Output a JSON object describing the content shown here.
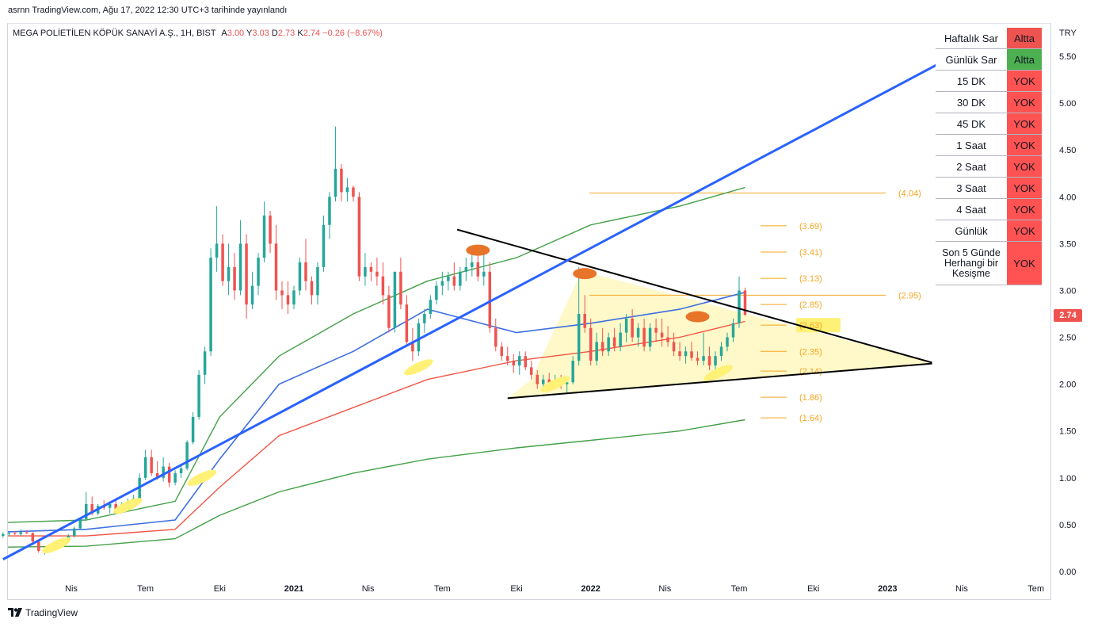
{
  "publisher_line": "asrnn TradingView.com, Ağu 17, 2022 12:30 UTC+3 tarihinde yayınlandı",
  "legend": {
    "symbol": "MEGA POLİETİLEN KÖPÜK SANAYİ A.Ş., 1H, BIST",
    "open_label": "A",
    "open": "3.00",
    "high_label": "Y",
    "high": "3.03",
    "low_label": "D",
    "low": "2.73",
    "close_label": "K",
    "close": "2.74",
    "change": "−0.26 (−8.67%)"
  },
  "currency": "TRY",
  "last_price": "2.74",
  "footer": {
    "brand": "TradingView",
    "icon": "tradingview-logo-icon"
  },
  "colors": {
    "up": "#26a69a",
    "down": "#ef5350",
    "trend_line": "#2962ff",
    "blue_ma": "#3d6fe0",
    "red_ma": "#f05545",
    "green_ma": "#43a047",
    "fib": "#f5a623",
    "altta": "#ef5350",
    "altta_green": "#4caf50",
    "yok": "#ff5252",
    "triangle_fill": "#fff7c2",
    "highlight": "#fff176",
    "marker_orange": "#e8742a"
  },
  "status_table": [
    {
      "name": "Haftalık Sar",
      "status": "Altta",
      "color": "#ef5350"
    },
    {
      "name": "Günlük Sar",
      "status": "Altta",
      "color": "#4caf50"
    },
    {
      "name": "15 DK",
      "status": "YOK",
      "color": "#ff5252"
    },
    {
      "name": "30 DK",
      "status": "YOK",
      "color": "#ff5252"
    },
    {
      "name": "45 DK",
      "status": "YOK",
      "color": "#ff5252"
    },
    {
      "name": "1 Saat",
      "status": "YOK",
      "color": "#ff5252"
    },
    {
      "name": "2 Saat",
      "status": "YOK",
      "color": "#ff5252"
    },
    {
      "name": "3 Saat",
      "status": "YOK",
      "color": "#ff5252"
    },
    {
      "name": "4 Saat",
      "status": "YOK",
      "color": "#ff5252"
    },
    {
      "name": "Günlük",
      "status": "YOK",
      "color": "#ff5252"
    },
    {
      "name": "Son 5 Günde Herhangi bir Kesişme",
      "status": "YOK",
      "color": "#ff5252"
    }
  ],
  "chart_data": {
    "type": "candlestick",
    "title": "MEGA POLİETİLEN KÖPÜK SANAYİ A.Ş., 1H, BIST",
    "ylim": [
      0,
      5.75
    ],
    "y_ticks": [
      "0.00",
      "0.50",
      "1.00",
      "1.50",
      "2.00",
      "2.50",
      "3.00",
      "3.50",
      "4.00",
      "4.50",
      "5.00",
      "5.50"
    ],
    "x_ticks": [
      "Nis",
      "Tem",
      "Eki",
      "2021",
      "Nis",
      "Tem",
      "Eki",
      "2022",
      "Nis",
      "Tem",
      "Eki",
      "2023",
      "Nis",
      "Tem"
    ],
    "x_tick_values": [
      2020.25,
      2020.5,
      2020.75,
      2021.0,
      2021.25,
      2021.5,
      2021.75,
      2022.0,
      2022.25,
      2022.5,
      2022.75,
      2023.0,
      2023.25,
      2023.5
    ],
    "xlim": [
      2020.0,
      2023.55
    ],
    "candles": [
      [
        2020.02,
        0.38,
        0.42,
        0.36,
        0.4
      ],
      [
        2020.04,
        0.4,
        0.42,
        0.38,
        0.41
      ],
      [
        2020.06,
        0.41,
        0.43,
        0.39,
        0.4
      ],
      [
        2020.08,
        0.4,
        0.45,
        0.38,
        0.42
      ],
      [
        2020.1,
        0.42,
        0.44,
        0.4,
        0.41
      ],
      [
        2020.12,
        0.41,
        0.42,
        0.3,
        0.32
      ],
      [
        2020.14,
        0.32,
        0.34,
        0.2,
        0.22
      ],
      [
        2020.16,
        0.22,
        0.26,
        0.18,
        0.24
      ],
      [
        2020.18,
        0.24,
        0.3,
        0.22,
        0.28
      ],
      [
        2020.2,
        0.28,
        0.32,
        0.24,
        0.3
      ],
      [
        2020.22,
        0.3,
        0.36,
        0.28,
        0.34
      ],
      [
        2020.24,
        0.34,
        0.4,
        0.32,
        0.38
      ],
      [
        2020.26,
        0.38,
        0.48,
        0.36,
        0.46
      ],
      [
        2020.28,
        0.46,
        0.58,
        0.44,
        0.56
      ],
      [
        2020.3,
        0.56,
        0.85,
        0.54,
        0.72
      ],
      [
        2020.32,
        0.72,
        0.8,
        0.6,
        0.62
      ],
      [
        2020.34,
        0.62,
        0.72,
        0.6,
        0.7
      ],
      [
        2020.36,
        0.7,
        0.76,
        0.66,
        0.68
      ],
      [
        2020.38,
        0.68,
        0.74,
        0.62,
        0.72
      ],
      [
        2020.4,
        0.72,
        0.76,
        0.64,
        0.66
      ],
      [
        2020.42,
        0.66,
        0.74,
        0.62,
        0.72
      ],
      [
        2020.44,
        0.72,
        0.78,
        0.68,
        0.74
      ],
      [
        2020.46,
        0.74,
        0.82,
        0.7,
        0.78
      ],
      [
        2020.48,
        0.78,
        1.05,
        0.76,
        1.0
      ],
      [
        2020.5,
        1.0,
        1.3,
        0.98,
        1.22
      ],
      [
        2020.52,
        1.22,
        1.3,
        1.02,
        1.05
      ],
      [
        2020.54,
        1.05,
        1.18,
        0.98,
        1.0
      ],
      [
        2020.56,
        1.0,
        1.22,
        0.96,
        1.12
      ],
      [
        2020.58,
        1.12,
        1.16,
        0.9,
        0.95
      ],
      [
        2020.6,
        0.95,
        1.08,
        0.92,
        1.05
      ],
      [
        2020.62,
        1.05,
        1.15,
        1.0,
        1.1
      ],
      [
        2020.64,
        1.1,
        1.4,
        1.08,
        1.38
      ],
      [
        2020.66,
        1.38,
        1.7,
        1.36,
        1.65
      ],
      [
        2020.68,
        1.65,
        2.15,
        1.62,
        2.1
      ],
      [
        2020.7,
        2.1,
        2.4,
        2.0,
        2.35
      ],
      [
        2020.72,
        2.35,
        3.45,
        2.3,
        3.35
      ],
      [
        2020.74,
        3.35,
        3.9,
        3.2,
        3.5
      ],
      [
        2020.76,
        3.5,
        3.6,
        3.05,
        3.1
      ],
      [
        2020.78,
        3.1,
        3.5,
        2.95,
        3.25
      ],
      [
        2020.8,
        3.25,
        3.4,
        2.9,
        3.0
      ],
      [
        2020.82,
        3.0,
        3.75,
        2.95,
        3.5
      ],
      [
        2020.84,
        3.5,
        3.6,
        2.7,
        2.85
      ],
      [
        2020.86,
        2.85,
        3.2,
        2.8,
        3.05
      ],
      [
        2020.88,
        3.05,
        3.4,
        2.95,
        3.35
      ],
      [
        2020.9,
        3.35,
        3.95,
        3.3,
        3.8
      ],
      [
        2020.92,
        3.8,
        3.85,
        3.4,
        3.5
      ],
      [
        2020.94,
        3.5,
        3.7,
        2.9,
        3.0
      ],
      [
        2020.96,
        3.0,
        3.1,
        2.8,
        2.95
      ],
      [
        2020.98,
        2.95,
        3.1,
        2.75,
        2.85
      ],
      [
        2021.0,
        2.85,
        3.05,
        2.8,
        3.0
      ],
      [
        2021.02,
        3.0,
        3.35,
        2.95,
        3.3
      ],
      [
        2021.04,
        3.3,
        3.55,
        3.0,
        3.1
      ],
      [
        2021.06,
        3.1,
        3.15,
        2.85,
        2.95
      ],
      [
        2021.08,
        2.95,
        3.3,
        2.85,
        3.25
      ],
      [
        2021.1,
        3.25,
        3.8,
        3.2,
        3.7
      ],
      [
        2021.12,
        3.7,
        4.05,
        3.55,
        4.0
      ],
      [
        2021.14,
        4.0,
        4.75,
        3.95,
        4.3
      ],
      [
        2021.16,
        4.3,
        4.35,
        3.95,
        4.05
      ],
      [
        2021.18,
        4.05,
        4.2,
        3.95,
        4.1
      ],
      [
        2021.2,
        4.1,
        4.12,
        3.95,
        4.0
      ],
      [
        2021.22,
        4.0,
        4.05,
        3.1,
        3.15
      ],
      [
        2021.24,
        3.15,
        3.4,
        3.05,
        3.25
      ],
      [
        2021.26,
        3.25,
        3.3,
        3.1,
        3.2
      ],
      [
        2021.28,
        3.2,
        3.35,
        3.05,
        3.15
      ],
      [
        2021.3,
        3.15,
        3.3,
        2.85,
        2.95
      ],
      [
        2021.32,
        2.95,
        3.05,
        2.55,
        2.6
      ],
      [
        2021.34,
        2.6,
        3.2,
        2.55,
        3.2
      ],
      [
        2021.36,
        3.2,
        3.35,
        2.8,
        2.85
      ],
      [
        2021.38,
        2.85,
        2.95,
        2.4,
        2.45
      ],
      [
        2021.4,
        2.45,
        2.6,
        2.25,
        2.35
      ],
      [
        2021.42,
        2.35,
        2.7,
        2.3,
        2.65
      ],
      [
        2021.44,
        2.65,
        2.8,
        2.55,
        2.75
      ],
      [
        2021.46,
        2.75,
        2.95,
        2.7,
        2.9
      ],
      [
        2021.48,
        2.9,
        3.1,
        2.85,
        3.05
      ],
      [
        2021.5,
        3.05,
        3.2,
        2.95,
        3.1
      ],
      [
        2021.52,
        3.1,
        3.2,
        3.0,
        3.15
      ],
      [
        2021.54,
        3.15,
        3.3,
        3.0,
        3.05
      ],
      [
        2021.56,
        3.05,
        3.25,
        3.0,
        3.2
      ],
      [
        2021.58,
        3.2,
        3.35,
        3.1,
        3.25
      ],
      [
        2021.6,
        3.25,
        3.4,
        3.15,
        3.3
      ],
      [
        2021.62,
        3.3,
        3.4,
        3.1,
        3.15
      ],
      [
        2021.64,
        3.15,
        3.45,
        3.05,
        3.2
      ],
      [
        2021.66,
        3.2,
        3.3,
        2.55,
        2.6
      ],
      [
        2021.68,
        2.6,
        2.7,
        2.35,
        2.4
      ],
      [
        2021.7,
        2.4,
        2.45,
        2.25,
        2.3
      ],
      [
        2021.72,
        2.3,
        2.4,
        2.2,
        2.25
      ],
      [
        2021.74,
        2.25,
        2.32,
        2.12,
        2.2
      ],
      [
        2021.76,
        2.2,
        2.35,
        2.1,
        2.3
      ],
      [
        2021.78,
        2.3,
        2.35,
        2.15,
        2.18
      ],
      [
        2021.8,
        2.18,
        2.25,
        2.05,
        2.1
      ],
      [
        2021.82,
        2.1,
        2.15,
        1.95,
        2.0
      ],
      [
        2021.84,
        2.0,
        2.1,
        1.95,
        2.05
      ],
      [
        2021.86,
        2.05,
        2.12,
        1.95,
        2.0
      ],
      [
        2021.88,
        2.0,
        2.1,
        1.96,
        2.05
      ],
      [
        2021.9,
        2.05,
        2.1,
        1.95,
        2.0
      ],
      [
        2021.92,
        2.0,
        2.08,
        1.9,
        2.02
      ],
      [
        2021.94,
        2.02,
        2.3,
        2.0,
        2.25
      ],
      [
        2021.96,
        2.25,
        3.25,
        2.2,
        2.75
      ],
      [
        2021.98,
        2.75,
        2.95,
        2.55,
        2.6
      ],
      [
        2022.0,
        2.6,
        2.7,
        2.2,
        2.25
      ],
      [
        2022.02,
        2.25,
        2.55,
        2.2,
        2.45
      ],
      [
        2022.04,
        2.45,
        2.6,
        2.3,
        2.35
      ],
      [
        2022.06,
        2.35,
        2.55,
        2.3,
        2.5
      ],
      [
        2022.08,
        2.5,
        2.6,
        2.35,
        2.4
      ],
      [
        2022.1,
        2.4,
        2.65,
        2.35,
        2.55
      ],
      [
        2022.12,
        2.55,
        2.75,
        2.45,
        2.7
      ],
      [
        2022.14,
        2.7,
        2.8,
        2.45,
        2.5
      ],
      [
        2022.16,
        2.5,
        2.65,
        2.4,
        2.6
      ],
      [
        2022.18,
        2.6,
        2.7,
        2.35,
        2.4
      ],
      [
        2022.2,
        2.4,
        2.65,
        2.35,
        2.6
      ],
      [
        2022.22,
        2.6,
        2.7,
        2.45,
        2.55
      ],
      [
        2022.24,
        2.55,
        2.7,
        2.4,
        2.5
      ],
      [
        2022.26,
        2.5,
        2.62,
        2.4,
        2.45
      ],
      [
        2022.28,
        2.45,
        2.55,
        2.3,
        2.35
      ],
      [
        2022.3,
        2.35,
        2.45,
        2.25,
        2.3
      ],
      [
        2022.32,
        2.3,
        2.4,
        2.22,
        2.35
      ],
      [
        2022.34,
        2.35,
        2.45,
        2.25,
        2.28
      ],
      [
        2022.36,
        2.28,
        2.35,
        2.2,
        2.25
      ],
      [
        2022.38,
        2.25,
        2.55,
        2.2,
        2.3
      ],
      [
        2022.4,
        2.3,
        2.4,
        2.15,
        2.2
      ],
      [
        2022.42,
        2.2,
        2.35,
        2.1,
        2.3
      ],
      [
        2022.44,
        2.3,
        2.45,
        2.25,
        2.4
      ],
      [
        2022.46,
        2.4,
        2.55,
        2.35,
        2.5
      ],
      [
        2022.48,
        2.5,
        2.7,
        2.45,
        2.65
      ],
      [
        2022.5,
        2.65,
        3.15,
        2.6,
        3.0
      ],
      [
        2022.52,
        3.0,
        3.03,
        2.73,
        2.74
      ]
    ],
    "moving_averages": [
      {
        "color": "#3d6fe0",
        "points": [
          [
            2020.0,
            0.42
          ],
          [
            2020.3,
            0.45
          ],
          [
            2020.6,
            0.55
          ],
          [
            2020.75,
            1.2
          ],
          [
            2020.95,
            2.0
          ],
          [
            2021.2,
            2.35
          ],
          [
            2021.45,
            2.8
          ],
          [
            2021.75,
            2.55
          ],
          [
            2022.0,
            2.65
          ],
          [
            2022.3,
            2.8
          ],
          [
            2022.52,
            2.98
          ]
        ]
      },
      {
        "color": "#f05545",
        "points": [
          [
            2020.0,
            0.38
          ],
          [
            2020.3,
            0.38
          ],
          [
            2020.6,
            0.45
          ],
          [
            2020.75,
            0.9
          ],
          [
            2020.95,
            1.45
          ],
          [
            2021.2,
            1.75
          ],
          [
            2021.45,
            2.05
          ],
          [
            2021.75,
            2.25
          ],
          [
            2022.0,
            2.35
          ],
          [
            2022.3,
            2.5
          ],
          [
            2022.52,
            2.67
          ]
        ]
      },
      {
        "color": "#43a047",
        "points": [
          [
            2020.0,
            0.52
          ],
          [
            2020.3,
            0.55
          ],
          [
            2020.6,
            0.75
          ],
          [
            2020.75,
            1.65
          ],
          [
            2020.95,
            2.3
          ],
          [
            2021.2,
            2.75
          ],
          [
            2021.45,
            3.1
          ],
          [
            2021.75,
            3.35
          ],
          [
            2022.0,
            3.7
          ],
          [
            2022.3,
            3.9
          ],
          [
            2022.52,
            4.1
          ]
        ]
      },
      {
        "color": "#43a047",
        "points": [
          [
            2020.0,
            0.26
          ],
          [
            2020.3,
            0.27
          ],
          [
            2020.6,
            0.35
          ],
          [
            2020.75,
            0.6
          ],
          [
            2020.95,
            0.85
          ],
          [
            2021.2,
            1.05
          ],
          [
            2021.45,
            1.2
          ],
          [
            2021.75,
            1.32
          ],
          [
            2022.0,
            1.4
          ],
          [
            2022.3,
            1.5
          ],
          [
            2022.52,
            1.62
          ]
        ]
      }
    ],
    "fib_levels": [
      {
        "value": 4.04,
        "label": "(4.04)"
      },
      {
        "value": 3.69,
        "label": "(3.69)"
      },
      {
        "value": 3.41,
        "label": "(3.41)"
      },
      {
        "value": 3.13,
        "label": "(3.13)"
      },
      {
        "value": 2.95,
        "label": "(2.95)"
      },
      {
        "value": 2.85,
        "label": "(2.85)"
      },
      {
        "value": 2.63,
        "label": "(2.63)"
      },
      {
        "value": 2.35,
        "label": "(2.35)"
      },
      {
        "value": 2.14,
        "label": "(2.14)"
      },
      {
        "value": 1.86,
        "label": "(1.86)"
      },
      {
        "value": 1.64,
        "label": "(1.64)"
      }
    ],
    "trend_line": [
      [
        2020.02,
        0.13
      ],
      [
        2023.25,
        5.55
      ]
    ],
    "triangle_upper": [
      [
        2021.55,
        3.65
      ],
      [
        2023.15,
        2.23
      ]
    ],
    "triangle_lower": [
      [
        2021.72,
        1.85
      ],
      [
        2023.15,
        2.22
      ]
    ],
    "markers_orange": [
      [
        2021.62,
        3.43
      ],
      [
        2021.98,
        3.18
      ],
      [
        2022.36,
        2.72
      ]
    ],
    "markers_yellow": [
      [
        2021.42,
        2.18
      ],
      [
        2022.43,
        2.12
      ],
      [
        2021.88,
        2.0
      ],
      [
        2020.69,
        1.0
      ],
      [
        2020.44,
        0.7
      ],
      [
        2020.2,
        0.28
      ]
    ]
  }
}
